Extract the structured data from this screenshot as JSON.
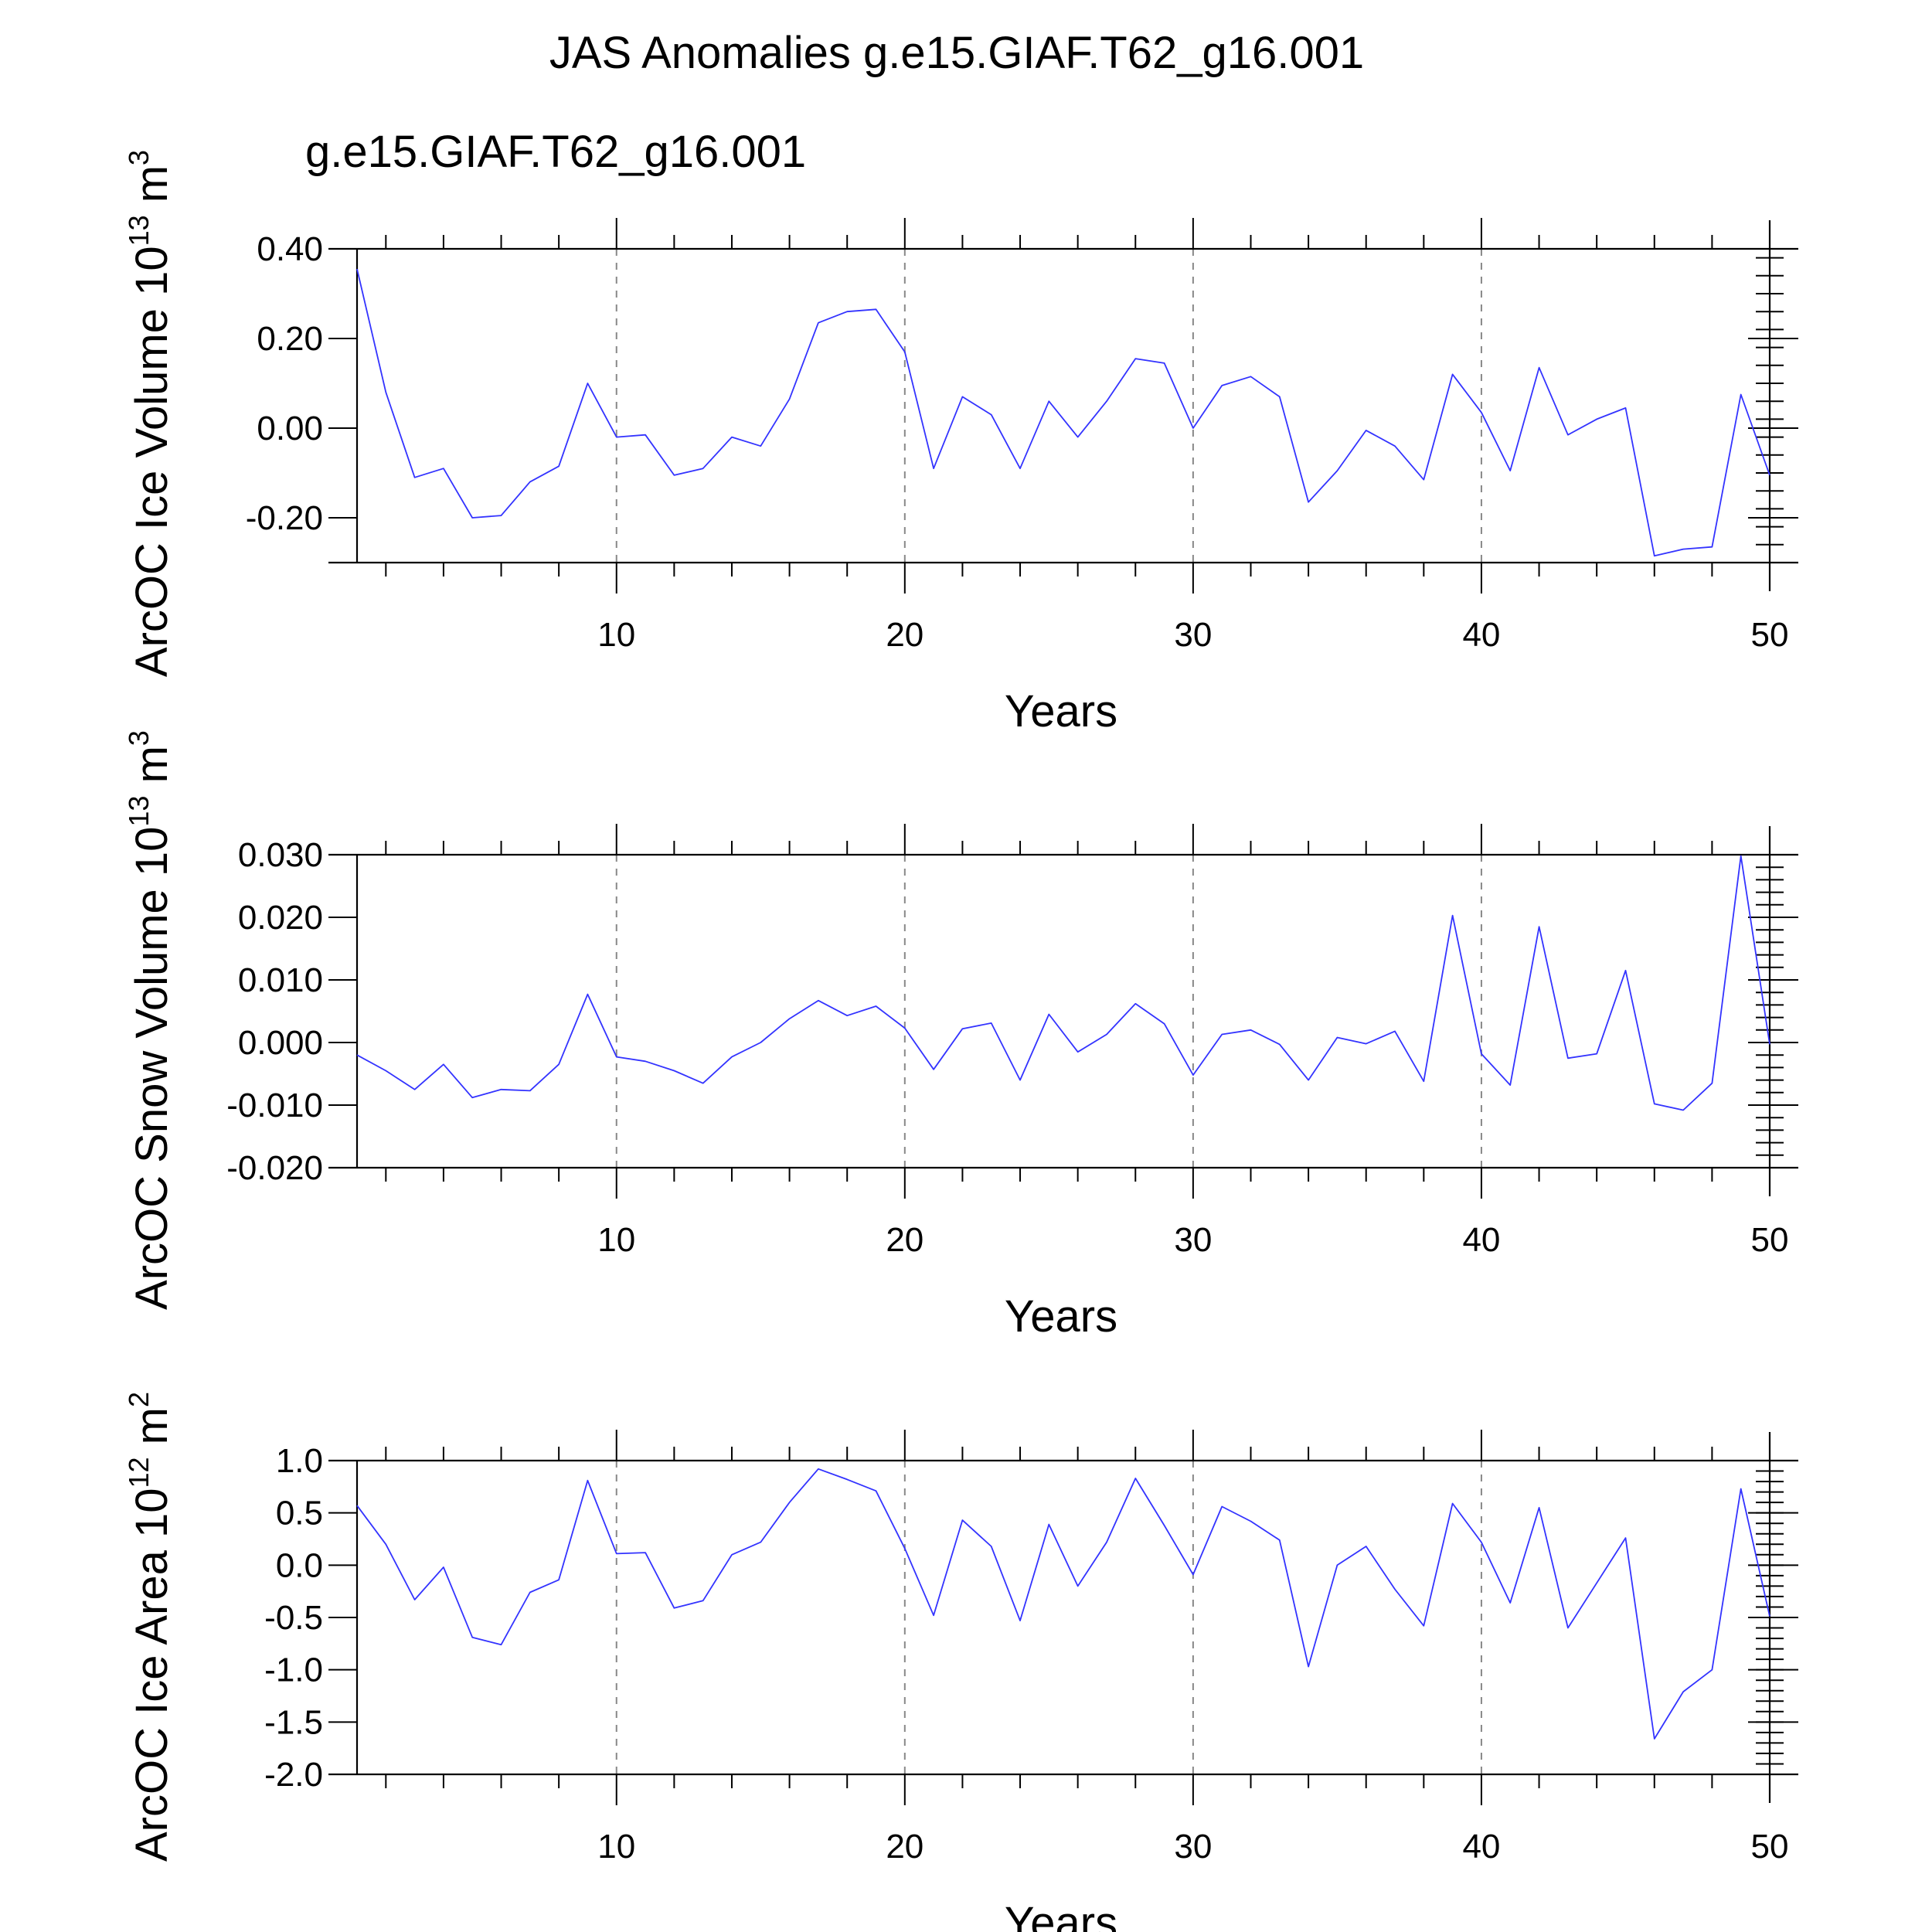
{
  "figure": {
    "title": "JAS Anomalies g.e15.GIAF.T62_g16.001",
    "subtitle": "g.e15.GIAF.T62_g16.001",
    "subtitle_color": "#0000FF",
    "line_color": "#3333FF"
  },
  "chart_data": [
    {
      "type": "line",
      "title": "",
      "xlabel": "Years",
      "ylabel_text": "ArcOC Ice Volume 10",
      "ylabel_exp": "13",
      "ylabel_unit": " m",
      "ylabel_unit_exp": "3",
      "xlim": [
        1,
        50
      ],
      "ylim": [
        -0.3,
        0.4
      ],
      "xticks": [
        10,
        20,
        30,
        40,
        50
      ],
      "yticks": [
        -0.2,
        0.0,
        0.2,
        0.4
      ],
      "ytick_labels": [
        "-0.20",
        "0.00",
        "0.20",
        "0.40"
      ],
      "grid": "vertical dashed at major x ticks",
      "series": [
        {
          "x": [
            1,
            2,
            3,
            4,
            5,
            6,
            7,
            8,
            9,
            10,
            11,
            12,
            13,
            14,
            15,
            16,
            17,
            18,
            19,
            20,
            21,
            22,
            23,
            24,
            25,
            26,
            27,
            28,
            29,
            30,
            31,
            32,
            33,
            34,
            35,
            36,
            37,
            38,
            39,
            40,
            41,
            42,
            43,
            44,
            45,
            46,
            47,
            48,
            49,
            50
          ],
          "values": [
            0.355,
            0.08,
            -0.11,
            -0.09,
            -0.2,
            -0.195,
            -0.12,
            -0.085,
            0.1,
            -0.02,
            -0.015,
            -0.105,
            -0.09,
            -0.02,
            -0.04,
            0.065,
            0.235,
            0.26,
            0.265,
            0.17,
            -0.09,
            0.07,
            0.03,
            -0.09,
            0.06,
            -0.02,
            0.06,
            0.155,
            0.145,
            0.0,
            0.095,
            0.115,
            0.07,
            -0.165,
            -0.095,
            -0.005,
            -0.04,
            -0.115,
            0.12,
            0.035,
            -0.095,
            0.135,
            -0.015,
            0.02,
            0.045,
            -0.285,
            -0.27,
            -0.265,
            0.075,
            -0.105
          ]
        }
      ]
    },
    {
      "type": "line",
      "title": "",
      "xlabel": "Years",
      "ylabel_text": "ArcOC Snow Volume 10",
      "ylabel_exp": "13",
      "ylabel_unit": " m",
      "ylabel_unit_exp": "3",
      "xlim": [
        1,
        50
      ],
      "ylim": [
        -0.02,
        0.03
      ],
      "xticks": [
        10,
        20,
        30,
        40,
        50
      ],
      "yticks": [
        -0.02,
        -0.01,
        0.0,
        0.01,
        0.02,
        0.03
      ],
      "ytick_labels": [
        "-0.020",
        "-0.010",
        "0.000",
        "0.010",
        "0.020",
        "0.030"
      ],
      "grid": "vertical dashed at major x ticks",
      "series": [
        {
          "x": [
            1,
            2,
            3,
            4,
            5,
            6,
            7,
            8,
            9,
            10,
            11,
            12,
            13,
            14,
            15,
            16,
            17,
            18,
            19,
            20,
            21,
            22,
            23,
            24,
            25,
            26,
            27,
            28,
            29,
            30,
            31,
            32,
            33,
            34,
            35,
            36,
            37,
            38,
            39,
            40,
            41,
            42,
            43,
            44,
            45,
            46,
            47,
            48,
            49,
            50
          ],
          "values": [
            -0.002,
            -0.0045,
            -0.0075,
            -0.0035,
            -0.0088,
            -0.0075,
            -0.0077,
            -0.0035,
            0.0077,
            -0.0023,
            -0.003,
            -0.0045,
            -0.0065,
            -0.0023,
            0.0,
            0.0038,
            0.0067,
            0.0043,
            0.0058,
            0.0023,
            -0.0043,
            0.0022,
            0.0031,
            -0.006,
            0.0045,
            -0.0015,
            0.0013,
            0.0062,
            0.003,
            -0.0052,
            0.0013,
            0.002,
            -0.0003,
            -0.006,
            0.0008,
            -0.0002,
            0.0018,
            -0.0062,
            0.0203,
            -0.0018,
            -0.0068,
            0.0185,
            -0.0025,
            -0.0018,
            0.0115,
            -0.0098,
            -0.0108,
            -0.0065,
            0.0298,
            -0.0003
          ]
        }
      ]
    },
    {
      "type": "line",
      "title": "",
      "xlabel": "Years",
      "ylabel_text": "ArcOC Ice Area 10",
      "ylabel_exp": "12",
      "ylabel_unit": " m",
      "ylabel_unit_exp": "2",
      "xlim": [
        1,
        50
      ],
      "ylim": [
        -2.0,
        1.0
      ],
      "xticks": [
        10,
        20,
        30,
        40,
        50
      ],
      "yticks": [
        -2.0,
        -1.5,
        -1.0,
        -0.5,
        0.0,
        0.5,
        1.0
      ],
      "ytick_labels": [
        "-2.0",
        "-1.5",
        "-1.0",
        "-0.5",
        "0.0",
        "0.5",
        "1.0"
      ],
      "grid": "vertical dashed at major x ticks",
      "series": [
        {
          "x": [
            1,
            2,
            3,
            4,
            5,
            6,
            7,
            8,
            9,
            10,
            11,
            12,
            13,
            14,
            15,
            16,
            17,
            18,
            19,
            20,
            21,
            22,
            23,
            24,
            25,
            26,
            27,
            28,
            29,
            30,
            31,
            32,
            33,
            34,
            35,
            36,
            37,
            38,
            39,
            40,
            41,
            42,
            43,
            44,
            45,
            46,
            47,
            48,
            49,
            50
          ],
          "values": [
            0.57,
            0.2,
            -0.33,
            -0.02,
            -0.69,
            -0.76,
            -0.26,
            -0.14,
            0.81,
            0.11,
            0.12,
            -0.41,
            -0.34,
            0.1,
            0.22,
            0.6,
            0.92,
            0.82,
            0.71,
            0.16,
            -0.48,
            0.43,
            0.18,
            -0.53,
            0.39,
            -0.2,
            0.22,
            0.83,
            0.38,
            -0.09,
            0.56,
            0.42,
            0.24,
            -0.97,
            0.0,
            0.18,
            -0.23,
            -0.58,
            0.59,
            0.22,
            -0.36,
            0.55,
            -0.6,
            -0.17,
            0.26,
            -1.66,
            -1.21,
            -1.0,
            0.73,
            -0.49
          ]
        }
      ]
    }
  ]
}
